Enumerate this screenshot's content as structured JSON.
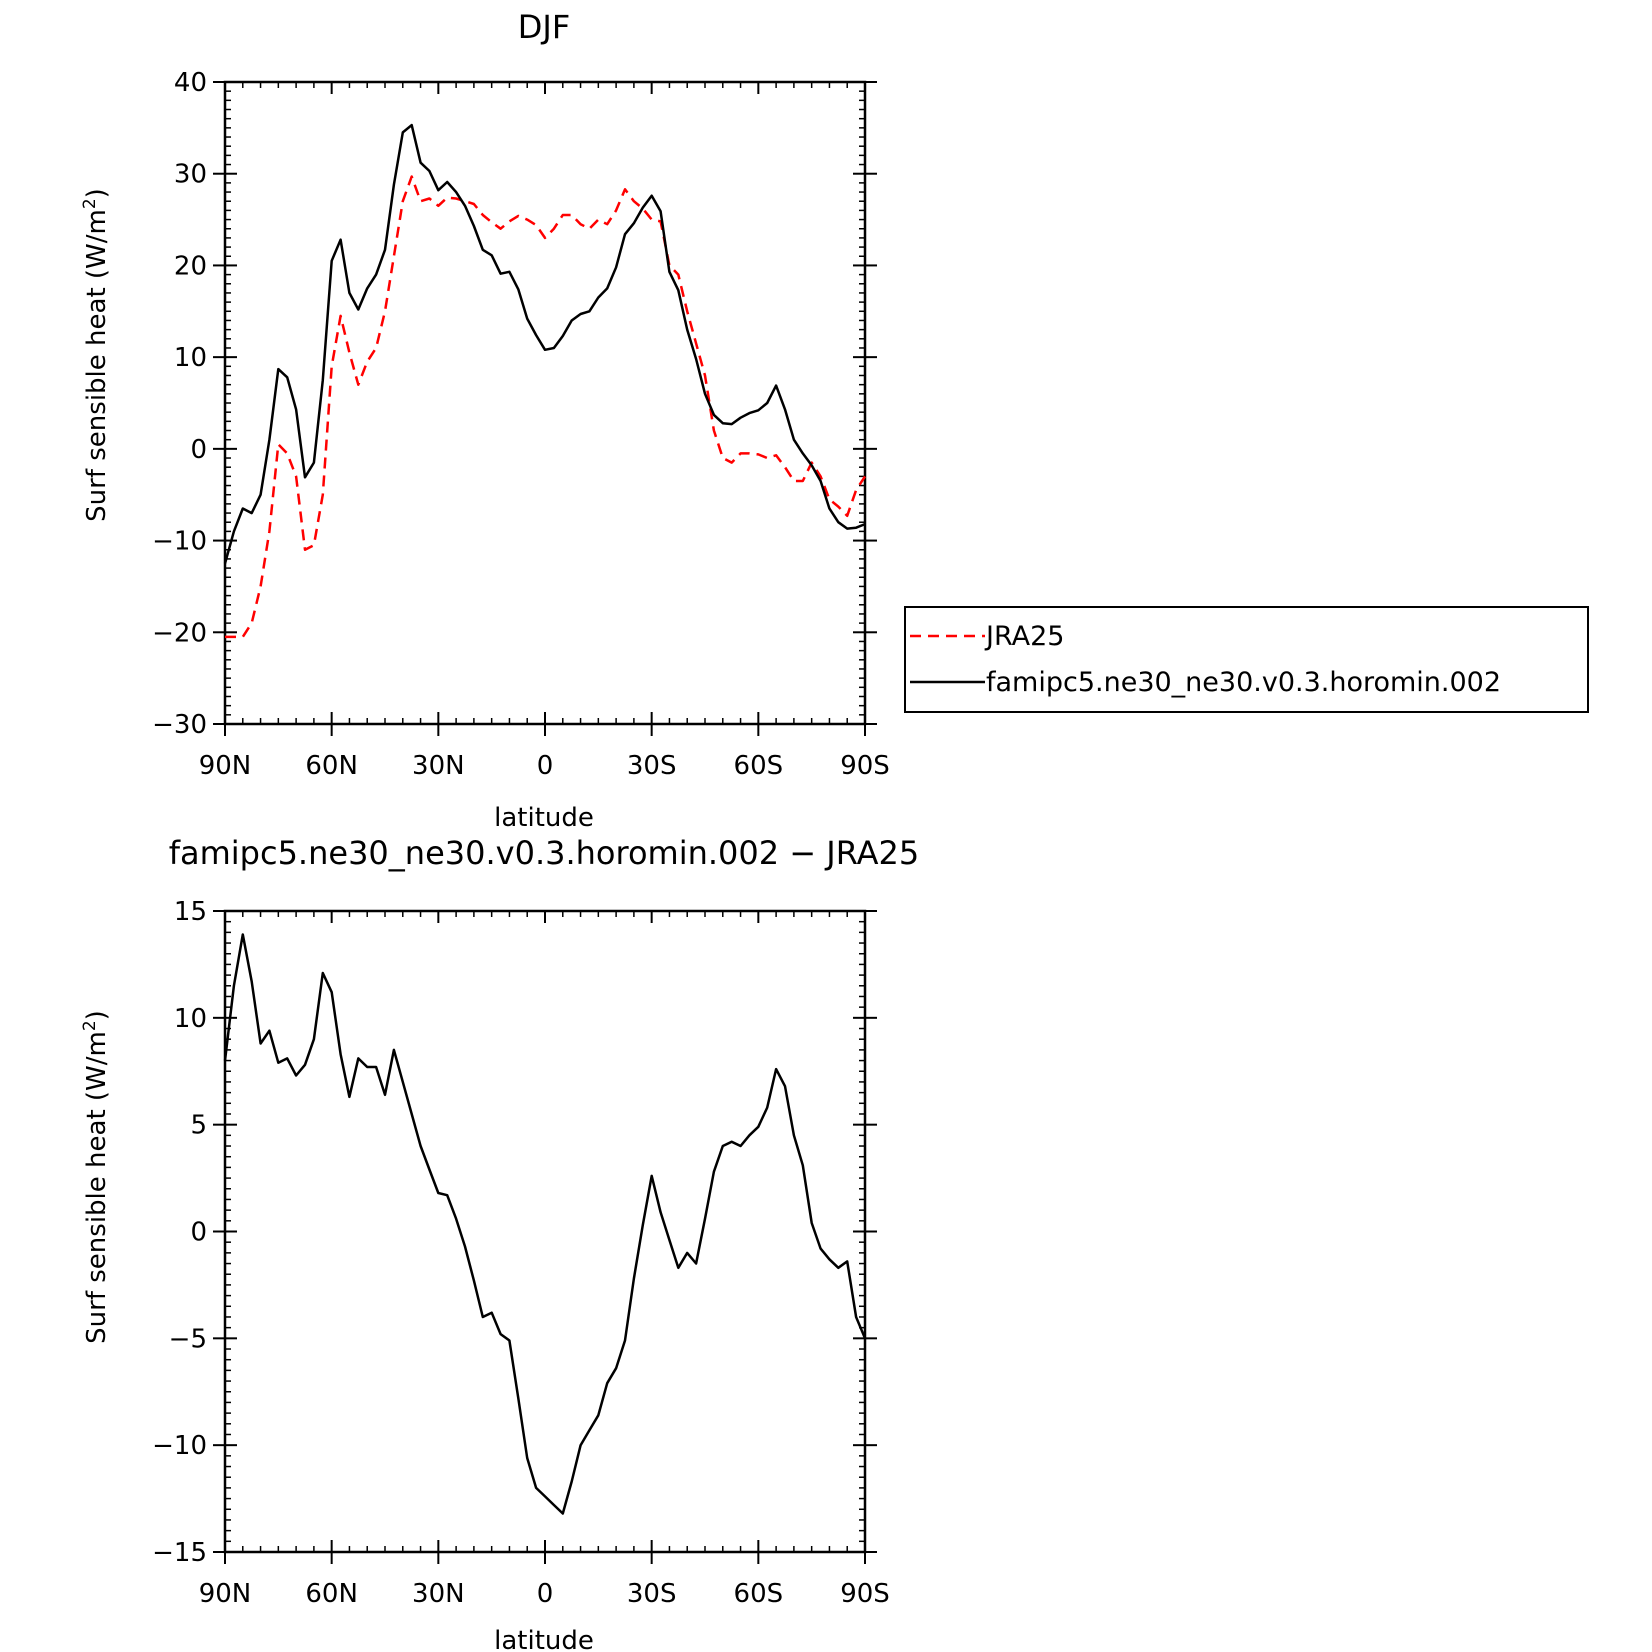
{
  "chart_data": [
    {
      "type": "line",
      "title": "DJF",
      "xlabel": "latitude",
      "ylabel": "Surf sensible heat (W/m",
      "ylabel_superscript": "2",
      "ylabel_suffix": ")",
      "xlim": [
        90,
        -90
      ],
      "ylim": [
        -30,
        40
      ],
      "x_ticks": [
        {
          "value": 90,
          "label": "90N"
        },
        {
          "value": 60,
          "label": "60N"
        },
        {
          "value": 30,
          "label": "30N"
        },
        {
          "value": 0,
          "label": "0"
        },
        {
          "value": -30,
          "label": "30S"
        },
        {
          "value": -60,
          "label": "60S"
        },
        {
          "value": -90,
          "label": "90S"
        }
      ],
      "y_ticks": [
        {
          "value": 40,
          "label": "40"
        },
        {
          "value": 30,
          "label": "30"
        },
        {
          "value": 20,
          "label": "20"
        },
        {
          "value": 10,
          "label": "10"
        },
        {
          "value": 0,
          "label": "0"
        },
        {
          "value": -10,
          "label": "−10"
        },
        {
          "value": -20,
          "label": "−20"
        },
        {
          "value": -30,
          "label": "−30"
        }
      ],
      "grid": false,
      "legend_position": "right",
      "series": [
        {
          "name": "JRA25",
          "color": "#ff0000",
          "style": "dashed",
          "x": [
            90,
            87.5,
            85,
            82.5,
            80,
            77.5,
            75,
            72.5,
            70,
            67.5,
            65,
            62.5,
            60,
            57.5,
            55,
            52.5,
            50,
            47.5,
            45,
            42.5,
            40,
            37.5,
            35,
            32.5,
            30,
            27.5,
            25,
            22.5,
            20,
            17.5,
            15,
            12.5,
            10,
            7.5,
            5,
            2.5,
            0,
            -2.5,
            -5,
            -7.5,
            -10,
            -12.5,
            -15,
            -17.5,
            -20,
            -22.5,
            -25,
            -27.5,
            -30,
            -32.5,
            -35,
            -37.5,
            -40,
            -42.5,
            -45,
            -47.5,
            -50,
            -52.5,
            -55,
            -57.5,
            -60,
            -62.5,
            -65,
            -67.5,
            -70,
            -72.5,
            -75,
            -77.5,
            -80,
            -82.5,
            -85,
            -87.5,
            -90
          ],
          "y": [
            -20.5,
            -20.5,
            -20.5,
            -19,
            -15,
            -9,
            0.5,
            -0.5,
            -3,
            -11,
            -10.5,
            -5,
            9,
            14.5,
            10.5,
            7,
            9.5,
            11,
            15,
            21,
            27,
            29.7,
            27,
            27.3,
            26.5,
            27.4,
            27.3,
            27,
            26.7,
            25.5,
            24.7,
            24,
            24.8,
            25.4,
            25,
            24.4,
            23,
            24,
            25.5,
            25.5,
            24.5,
            24,
            25,
            24.5,
            26,
            28.3,
            27,
            26.2,
            25,
            24.8,
            20,
            19,
            15,
            11.5,
            8,
            2,
            -1,
            -1.5,
            -0.5,
            -0.5,
            -0.6,
            -1,
            -0.7,
            -2,
            -3.5,
            -3.5,
            -1.5,
            -3,
            -5.5,
            -6.3,
            -7.3,
            -4.5,
            -3
          ]
        },
        {
          "name": "famipc5.ne30_ne30.v0.3.horomin.002",
          "color": "#000000",
          "style": "solid",
          "x": [
            90,
            87.5,
            85,
            82.5,
            80,
            77.5,
            75,
            72.5,
            70,
            67.5,
            65,
            62.5,
            60,
            57.5,
            55,
            52.5,
            50,
            47.5,
            45,
            42.5,
            40,
            37.5,
            35,
            32.5,
            30,
            27.5,
            25,
            22.5,
            20,
            17.5,
            15,
            12.5,
            10,
            7.5,
            5,
            2.5,
            0,
            -2.5,
            -5,
            -7.5,
            -10,
            -12.5,
            -15,
            -17.5,
            -20,
            -22.5,
            -25,
            -27.5,
            -30,
            -32.5,
            -35,
            -37.5,
            -40,
            -42.5,
            -45,
            -47.5,
            -50,
            -52.5,
            -55,
            -57.5,
            -60,
            -62.5,
            -65,
            -67.5,
            -70,
            -72.5,
            -75,
            -77.5,
            -80,
            -82.5,
            -85,
            -87.5,
            -90
          ],
          "y": [
            -12.5,
            -9,
            -6.5,
            -7,
            -5,
            1,
            8.7,
            7.8,
            4.3,
            -3.1,
            -1.5,
            7.5,
            20.5,
            22.8,
            17,
            15.2,
            17.5,
            19,
            21.7,
            28.8,
            34.5,
            35.3,
            31.2,
            30.3,
            28.2,
            29.1,
            28,
            26.5,
            24.3,
            21.7,
            21.1,
            19.1,
            19.3,
            17.4,
            14.2,
            12.4,
            10.8,
            11,
            12.3,
            14,
            14.7,
            15,
            16.5,
            17.5,
            19.8,
            23.4,
            24.6,
            26.3,
            27.6,
            25.9,
            19.3,
            17.3,
            13,
            9.8,
            6,
            3.7,
            2.8,
            2.7,
            3.4,
            3.9,
            4.2,
            5,
            6.9,
            4.3,
            1,
            -0.5,
            -1.8,
            -3.5,
            -6.5,
            -8,
            -8.7,
            -8.6,
            -8.2
          ]
        }
      ]
    },
    {
      "type": "line",
      "title": "famipc5.ne30_ne30.v0.3.horomin.002 − JRA25",
      "xlabel": "latitude",
      "ylabel": "Surf sensible heat (W/m",
      "ylabel_superscript": "2",
      "ylabel_suffix": ")",
      "xlim": [
        90,
        -90
      ],
      "ylim": [
        -15,
        15
      ],
      "x_ticks": [
        {
          "value": 90,
          "label": "90N"
        },
        {
          "value": 60,
          "label": "60N"
        },
        {
          "value": 30,
          "label": "30N"
        },
        {
          "value": 0,
          "label": "0"
        },
        {
          "value": -30,
          "label": "30S"
        },
        {
          "value": -60,
          "label": "60S"
        },
        {
          "value": -90,
          "label": "90S"
        }
      ],
      "y_ticks": [
        {
          "value": 15,
          "label": "15"
        },
        {
          "value": 10,
          "label": "10"
        },
        {
          "value": 5,
          "label": "5"
        },
        {
          "value": 0,
          "label": "0"
        },
        {
          "value": -5,
          "label": "−5"
        },
        {
          "value": -10,
          "label": "−10"
        },
        {
          "value": -15,
          "label": "−15"
        }
      ],
      "grid": false,
      "series": [
        {
          "color": "#000000",
          "style": "solid",
          "x": [
            90,
            87.5,
            85,
            82.5,
            80,
            77.5,
            75,
            72.5,
            70,
            67.5,
            65,
            62.5,
            60,
            57.5,
            55,
            52.5,
            50,
            47.5,
            45,
            42.5,
            40,
            37.5,
            35,
            32.5,
            30,
            27.5,
            25,
            22.5,
            20,
            17.5,
            15,
            12.5,
            10,
            7.5,
            5,
            2.5,
            0,
            -2.5,
            -5,
            -7.5,
            -10,
            -12.5,
            -15,
            -17.5,
            -20,
            -22.5,
            -25,
            -27.5,
            -30,
            -32.5,
            -35,
            -37.5,
            -40,
            -42.5,
            -45,
            -47.5,
            -50,
            -52.5,
            -55,
            -57.5,
            -60,
            -62.5,
            -65,
            -67.5,
            -70,
            -72.5,
            -75,
            -77.5,
            -80,
            -82.5,
            -85,
            -87.5,
            -90
          ],
          "y": [
            8,
            11.5,
            13.9,
            11.7,
            8.8,
            9.4,
            7.9,
            8.1,
            7.3,
            7.8,
            9,
            12.1,
            11.2,
            8.3,
            6.3,
            8.1,
            7.7,
            7.7,
            6.4,
            8.5,
            7,
            5.5,
            4,
            2.9,
            1.8,
            1.7,
            0.6,
            -0.7,
            -2.3,
            -4,
            -3.8,
            -4.8,
            -5.1,
            -7.8,
            -10.6,
            -12,
            -12.4,
            -12.8,
            -13.2,
            -11.7,
            -10,
            -9.3,
            -8.6,
            -7.1,
            -6.4,
            -5.1,
            -2.2,
            0.3,
            2.6,
            0.9,
            -0.4,
            -1.7,
            -1,
            -1.5,
            0.6,
            2.8,
            4,
            4.2,
            4,
            4.5,
            4.9,
            5.8,
            7.6,
            6.8,
            4.5,
            3.1,
            0.4,
            -0.8,
            -1.3,
            -1.7,
            -1.4,
            -4,
            -5
          ]
        }
      ]
    }
  ]
}
